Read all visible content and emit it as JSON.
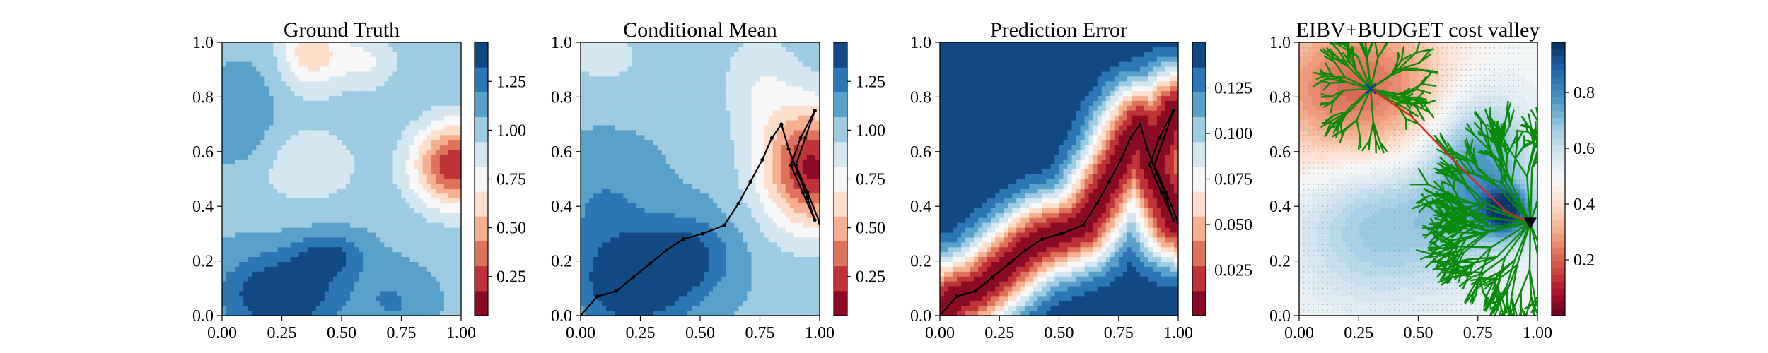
{
  "colors": {
    "rdbu_levels": [
      "#67001f",
      "#b2182b",
      "#d6604d",
      "#f4a582",
      "#fddbc7",
      "#f7f7f7",
      "#d1e5f0",
      "#92c5de",
      "#4393c3",
      "#2166ac",
      "#053061"
    ],
    "path": "#000000",
    "tree": "#0a8a0a",
    "best_path": "#d42a1e",
    "start_marker": "#1a1acc",
    "goal_marker": "#000000"
  },
  "chart_data": [
    {
      "type": "heatmap",
      "title": "Ground Truth",
      "xlim": [
        0,
        1
      ],
      "ylim": [
        0,
        1
      ],
      "xticks": [
        "0.00",
        "0.25",
        "0.50",
        "0.75",
        "1.00"
      ],
      "yticks": [
        "0.0",
        "0.2",
        "0.4",
        "0.6",
        "0.8",
        "1.0"
      ],
      "colormap": "RdBu",
      "colorbar": {
        "min": 0.05,
        "max": 1.45,
        "ticks": [
          "0.25",
          "0.50",
          "0.75",
          "1.00",
          "1.25"
        ],
        "tick_values": [
          0.25,
          0.5,
          0.75,
          1.0,
          1.25
        ],
        "levels": 11
      },
      "field": {
        "base": 1.05,
        "blobs": [
          {
            "x": 0.97,
            "y": 0.55,
            "amp": -0.85,
            "sx": 0.12,
            "sy": 0.11
          },
          {
            "x": 0.37,
            "y": 0.97,
            "amp": -0.45,
            "sx": 0.09,
            "sy": 0.1
          },
          {
            "x": 0.6,
            "y": 0.93,
            "amp": -0.25,
            "sx": 0.1,
            "sy": 0.08
          },
          {
            "x": 0.35,
            "y": 0.55,
            "amp": -0.2,
            "sx": 0.18,
            "sy": 0.12
          },
          {
            "x": 0.25,
            "y": 0.08,
            "amp": 0.45,
            "sx": 0.17,
            "sy": 0.1
          },
          {
            "x": 0.45,
            "y": 0.22,
            "amp": 0.28,
            "sx": 0.1,
            "sy": 0.06
          },
          {
            "x": 0.1,
            "y": 0.7,
            "amp": 0.15,
            "sx": 0.1,
            "sy": 0.12
          },
          {
            "x": 0.72,
            "y": 0.05,
            "amp": 0.15,
            "sx": 0.1,
            "sy": 0.08
          }
        ]
      }
    },
    {
      "type": "heatmap",
      "title": "Conditional Mean",
      "xlim": [
        0,
        1
      ],
      "ylim": [
        0,
        1
      ],
      "xticks": [
        "0.00",
        "0.25",
        "0.50",
        "0.75",
        "1.00"
      ],
      "yticks": [
        "0.0",
        "0.2",
        "0.4",
        "0.6",
        "0.8",
        "1.0"
      ],
      "colormap": "RdBu",
      "colorbar": {
        "min": 0.05,
        "max": 1.45,
        "ticks": [
          "0.25",
          "0.50",
          "0.75",
          "1.00",
          "1.25"
        ],
        "tick_values": [
          0.25,
          0.5,
          0.75,
          1.0,
          1.25
        ],
        "levels": 11
      },
      "field": {
        "base": 1.05,
        "blobs": [
          {
            "x": 0.97,
            "y": 0.54,
            "amp": -0.9,
            "sx": 0.15,
            "sy": 0.16
          },
          {
            "x": 0.75,
            "y": 0.85,
            "amp": -0.2,
            "sx": 0.12,
            "sy": 0.15
          },
          {
            "x": 0.1,
            "y": 0.95,
            "amp": -0.15,
            "sx": 0.15,
            "sy": 0.1
          },
          {
            "x": 0.22,
            "y": 0.12,
            "amp": 0.45,
            "sx": 0.16,
            "sy": 0.12
          },
          {
            "x": 0.45,
            "y": 0.22,
            "amp": 0.3,
            "sx": 0.13,
            "sy": 0.1
          },
          {
            "x": 0.1,
            "y": 0.4,
            "amp": 0.15,
            "sx": 0.15,
            "sy": 0.15
          }
        ]
      },
      "path": {
        "x": [
          0.0,
          0.07,
          0.15,
          0.22,
          0.29,
          0.36,
          0.43,
          0.51,
          0.6,
          0.66,
          0.71,
          0.76,
          0.8,
          0.84,
          0.87,
          0.91,
          0.95,
          0.98,
          0.93,
          0.88,
          0.92,
          0.98,
          0.94,
          0.9,
          0.95,
          1.0
        ],
        "y": [
          0.0,
          0.07,
          0.09,
          0.14,
          0.19,
          0.24,
          0.28,
          0.3,
          0.33,
          0.41,
          0.49,
          0.57,
          0.65,
          0.7,
          0.61,
          0.52,
          0.43,
          0.35,
          0.45,
          0.55,
          0.65,
          0.75,
          0.65,
          0.55,
          0.45,
          0.34
        ]
      }
    },
    {
      "type": "heatmap",
      "title": "Prediction Error",
      "xlim": [
        0,
        1
      ],
      "ylim": [
        0,
        1
      ],
      "xticks": [
        "0.00",
        "0.25",
        "0.50",
        "0.75",
        "1.00"
      ],
      "yticks": [
        "0.0",
        "0.2",
        "0.4",
        "0.6",
        "0.8",
        "1.0"
      ],
      "colormap": "RdBu",
      "colorbar": {
        "min": 0.0,
        "max": 0.15,
        "ticks": [
          "0.025",
          "0.050",
          "0.075",
          "0.100",
          "0.125"
        ],
        "tick_values": [
          0.025,
          0.05,
          0.075,
          0.1,
          0.125
        ],
        "levels": 11
      },
      "field": {
        "base": 0.15,
        "path_dip": 0.145,
        "path_sigma": 0.11
      },
      "path": {
        "x": [
          0.0,
          0.07,
          0.15,
          0.22,
          0.29,
          0.36,
          0.43,
          0.51,
          0.6,
          0.66,
          0.71,
          0.76,
          0.8,
          0.84,
          0.87,
          0.91,
          0.95,
          0.98,
          0.93,
          0.88,
          0.92,
          0.98,
          0.94,
          0.9,
          0.95,
          1.0
        ],
        "y": [
          0.0,
          0.07,
          0.09,
          0.14,
          0.19,
          0.24,
          0.28,
          0.3,
          0.33,
          0.41,
          0.49,
          0.57,
          0.65,
          0.7,
          0.61,
          0.52,
          0.43,
          0.35,
          0.45,
          0.55,
          0.65,
          0.75,
          0.65,
          0.55,
          0.45,
          0.34
        ]
      }
    },
    {
      "type": "heatmap",
      "title": "EIBV+BUDGET cost valley",
      "xlim": [
        0,
        1
      ],
      "ylim": [
        0,
        1
      ],
      "xticks": [
        "0.00",
        "0.25",
        "0.50",
        "0.75",
        "1.00"
      ],
      "yticks": [
        "0.0",
        "0.2",
        "0.4",
        "0.6",
        "0.8",
        "1.0"
      ],
      "colormap": "RdBu",
      "colorbar": {
        "min": 0.0,
        "max": 0.98,
        "ticks": [
          "0.2",
          "0.4",
          "0.6",
          "0.8"
        ],
        "tick_values": [
          0.2,
          0.4,
          0.6,
          0.8
        ],
        "levels": 40
      },
      "field": {
        "base": 0.5,
        "blobs": [
          {
            "x": 0.25,
            "y": 0.82,
            "amp": -0.3,
            "sx": 0.3,
            "sy": 0.22
          },
          {
            "x": 0.35,
            "y": 0.35,
            "amp": 0.2,
            "sx": 0.25,
            "sy": 0.2
          },
          {
            "x": 0.75,
            "y": 0.55,
            "amp": 0.28,
            "sx": 0.15,
            "sy": 0.2
          },
          {
            "x": 0.87,
            "y": 0.38,
            "amp": 0.42,
            "sx": 0.07,
            "sy": 0.06
          }
        ]
      },
      "best_path": {
        "x": [
          0.3,
          0.47,
          0.68,
          0.87,
          0.97
        ],
        "y": [
          0.83,
          0.73,
          0.54,
          0.38,
          0.34
        ]
      },
      "start": {
        "x": 0.3,
        "y": 0.83
      },
      "goal": {
        "x": 0.97,
        "y": 0.34
      },
      "tree": {
        "root": {
          "x": 0.97,
          "y": 0.34
        },
        "depth": 4,
        "branches": 3,
        "seed": 7
      }
    }
  ]
}
